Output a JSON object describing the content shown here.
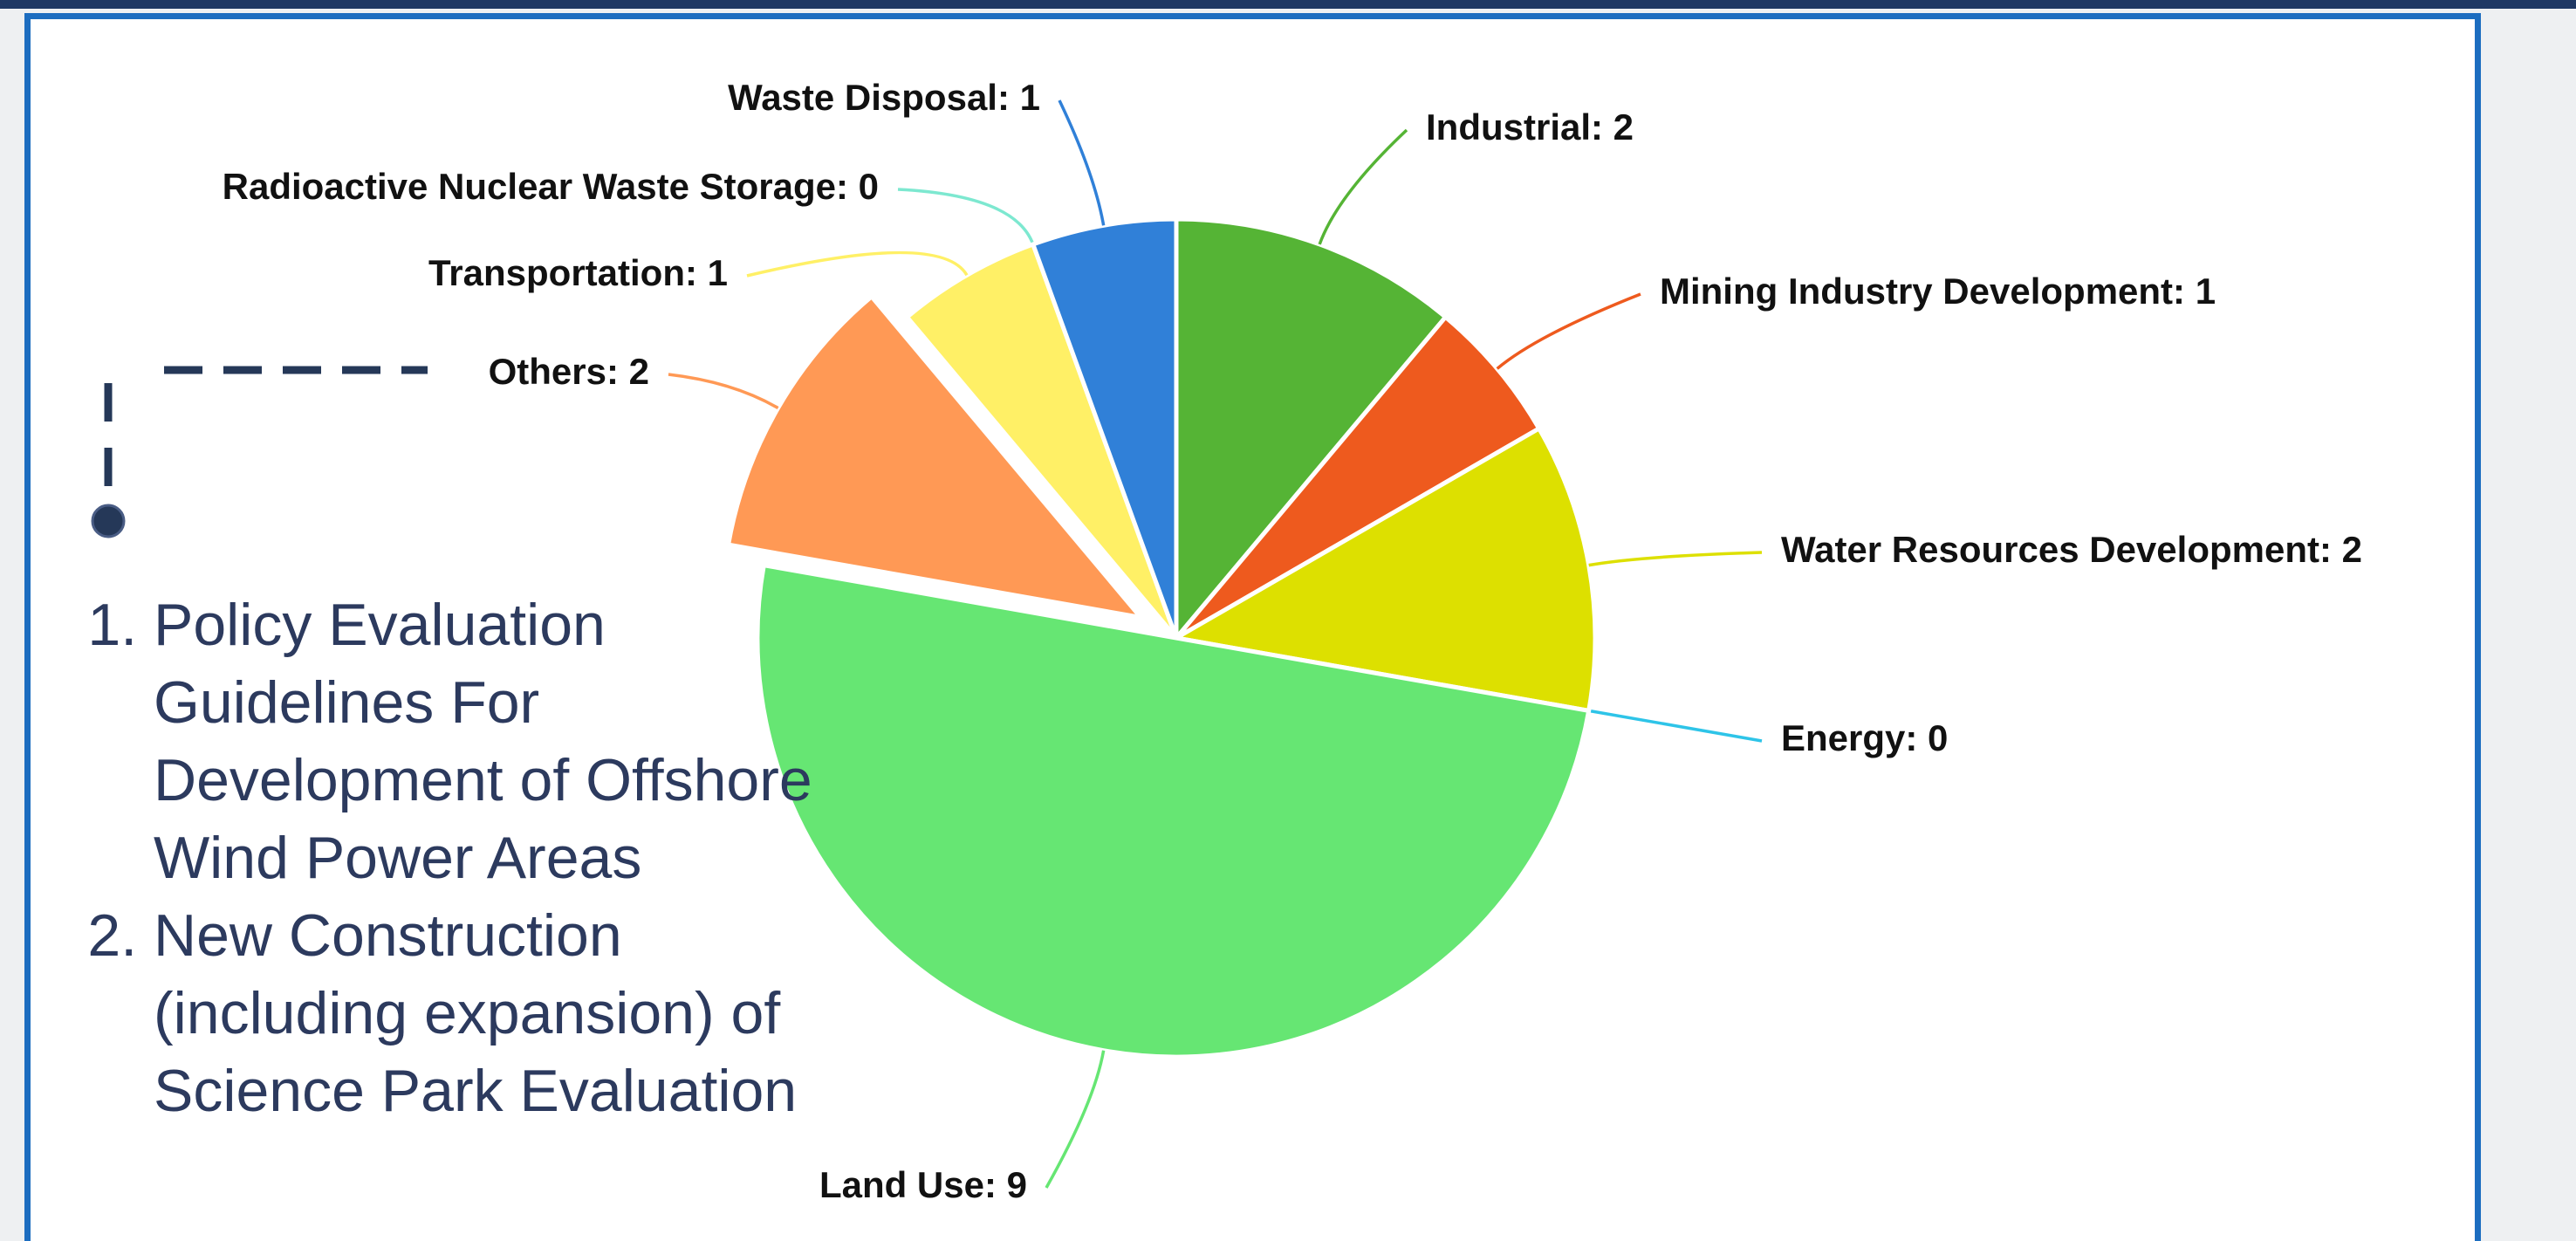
{
  "chart_data": {
    "type": "pie",
    "values": [
      2,
      1,
      2,
      0,
      9,
      2,
      1,
      0,
      1
    ],
    "value_labels": [
      "Industrial: 2",
      "Mining Industry Development: 1",
      "Water Resources Development: 2",
      "Energy: 0",
      "Land Use: 9",
      "Others: 2",
      "Transportation: 1",
      "Radioactive Nuclear Waste Storage: 0",
      "Waste Disposal: 1"
    ],
    "colors": [
      "#55b435",
      "#ee5a1e",
      "#dde000",
      "#2ec4e8",
      "#66e673",
      "#ff9955",
      "#fff066",
      "#7de8d0",
      "#3080d8"
    ],
    "exploded": [
      5
    ]
  },
  "notes": {
    "items": [
      "Policy Evaluation Guidelines For Development of Offshore Wind Power Areas",
      "New Construction (including expansion) of Science Park Evaluation"
    ]
  }
}
